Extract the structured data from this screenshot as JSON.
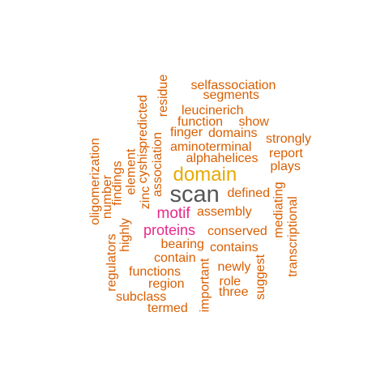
{
  "colors": {
    "orange": "#d95f02",
    "gold": "#e6ab02",
    "magenta": "#e7298a",
    "gray": "#555555"
  },
  "words": [
    {
      "text": "scan",
      "color": "gray"
    },
    {
      "text": "domain",
      "color": "gold"
    },
    {
      "text": "motif",
      "color": "magenta"
    },
    {
      "text": "proteins",
      "color": "magenta"
    },
    {
      "text": "selfassociation",
      "color": "orange"
    },
    {
      "text": "segments",
      "color": "orange"
    },
    {
      "text": "leucinerich",
      "color": "orange"
    },
    {
      "text": "function",
      "color": "orange"
    },
    {
      "text": "show",
      "color": "orange"
    },
    {
      "text": "finger",
      "color": "orange"
    },
    {
      "text": "domains",
      "color": "orange"
    },
    {
      "text": "strongly",
      "color": "orange"
    },
    {
      "text": "aminoterminal",
      "color": "orange"
    },
    {
      "text": "report",
      "color": "orange"
    },
    {
      "text": "alphahelices",
      "color": "orange"
    },
    {
      "text": "plays",
      "color": "orange"
    },
    {
      "text": "defined",
      "color": "orange"
    },
    {
      "text": "assembly",
      "color": "orange"
    },
    {
      "text": "conserved",
      "color": "orange"
    },
    {
      "text": "bearing",
      "color": "orange"
    },
    {
      "text": "contains",
      "color": "orange"
    },
    {
      "text": "contain",
      "color": "orange"
    },
    {
      "text": "newly",
      "color": "orange"
    },
    {
      "text": "functions",
      "color": "orange"
    },
    {
      "text": "role",
      "color": "orange"
    },
    {
      "text": "region",
      "color": "orange"
    },
    {
      "text": "three",
      "color": "orange"
    },
    {
      "text": "subclass",
      "color": "orange"
    },
    {
      "text": "termed",
      "color": "orange"
    },
    {
      "text": "residue",
      "color": "orange"
    },
    {
      "text": "predicted",
      "color": "orange"
    },
    {
      "text": "cyshis",
      "color": "orange"
    },
    {
      "text": "association",
      "color": "orange"
    },
    {
      "text": "element",
      "color": "orange"
    },
    {
      "text": "zinc",
      "color": "orange"
    },
    {
      "text": "findings",
      "color": "orange"
    },
    {
      "text": "number",
      "color": "orange"
    },
    {
      "text": "oligomerization",
      "color": "orange"
    },
    {
      "text": "highly",
      "color": "orange"
    },
    {
      "text": "regulators",
      "color": "orange"
    },
    {
      "text": "important",
      "color": "orange"
    },
    {
      "text": "suggest",
      "color": "orange"
    },
    {
      "text": "mediating",
      "color": "orange"
    },
    {
      "text": "transcriptional",
      "color": "orange"
    }
  ]
}
